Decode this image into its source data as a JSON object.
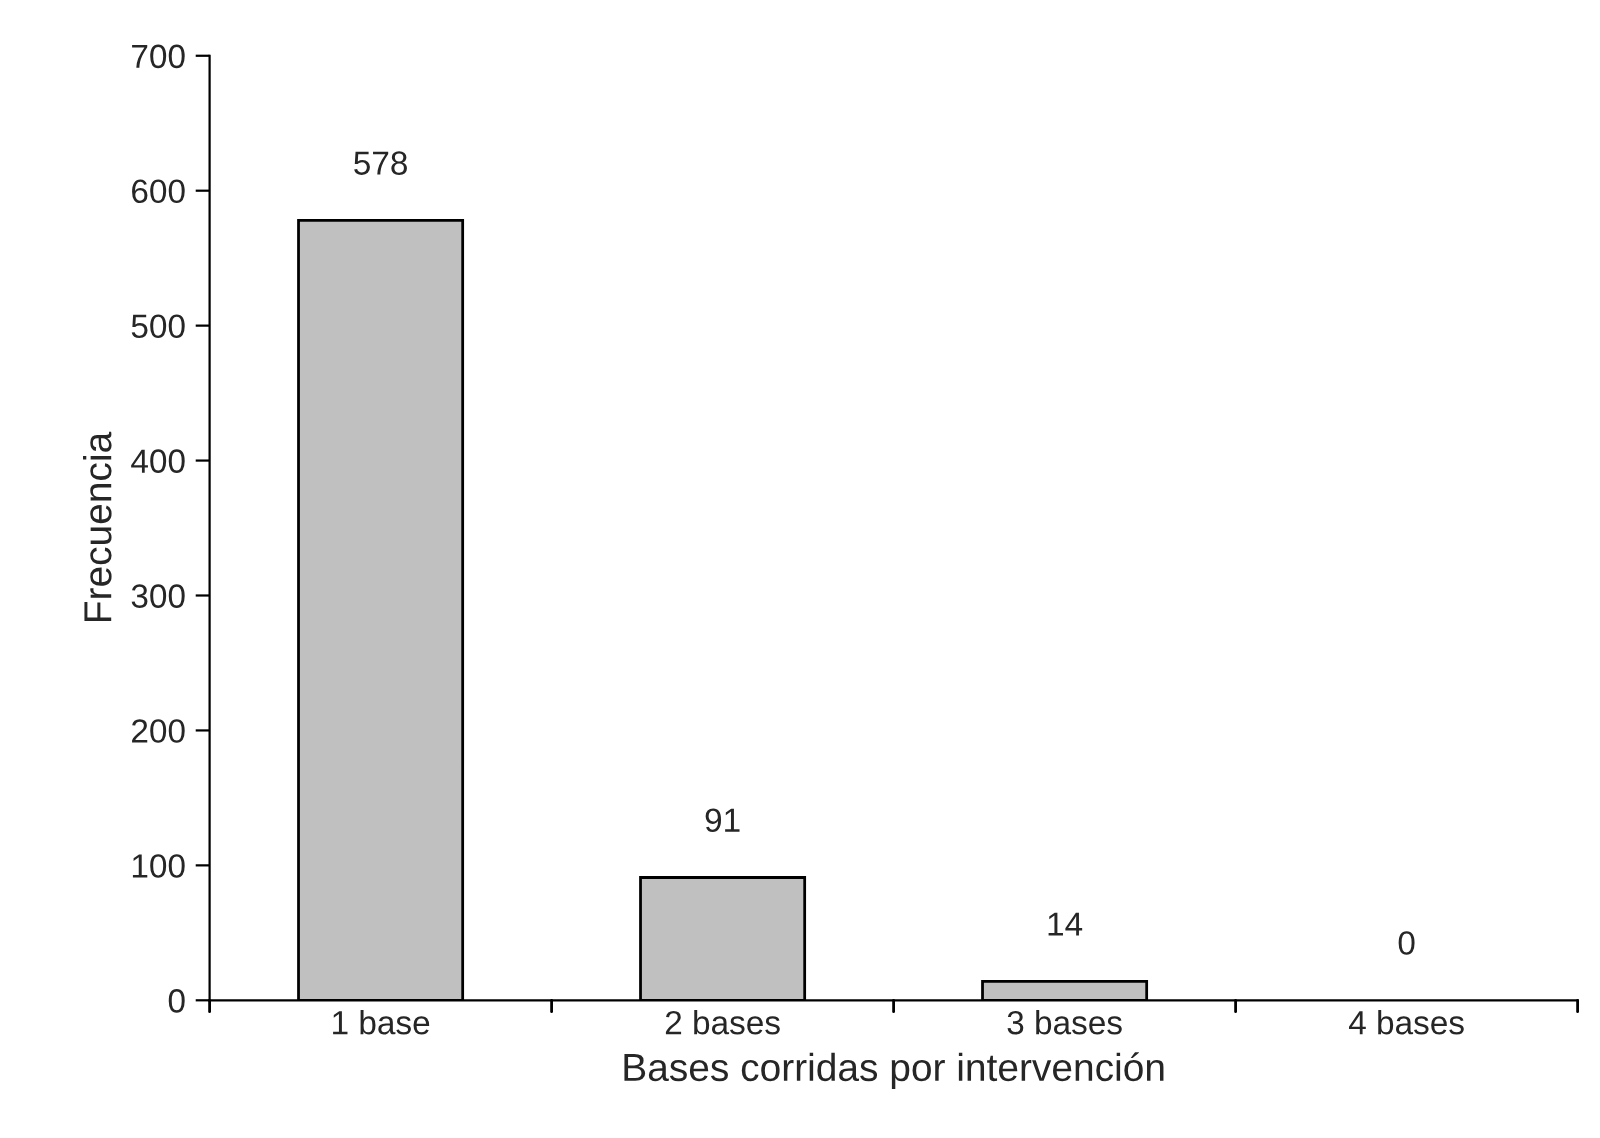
{
  "chart_data": {
    "type": "bar",
    "xlabel": "Bases corridas por intervención",
    "ylabel": "Frecuencia",
    "categories": [
      "1 base",
      "2 bases",
      "3 bases",
      "4 bases"
    ],
    "values": [
      578,
      91,
      14,
      0
    ],
    "color": "#c0c0c0",
    "ylim": [
      0,
      700
    ],
    "yticks": [
      0,
      100,
      200,
      300,
      400,
      500,
      600,
      700
    ],
    "data_labels": true,
    "grid": false,
    "legend": false
  }
}
